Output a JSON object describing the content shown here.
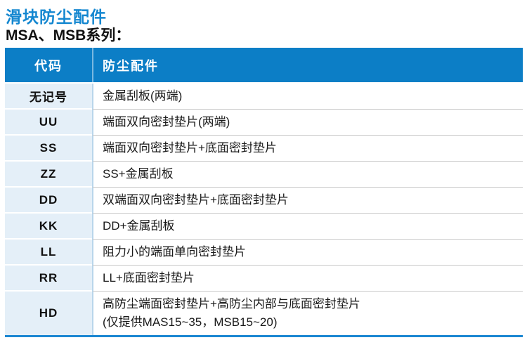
{
  "page": {
    "title": "滑块防尘配件",
    "subtitle": "MSA、MSB系列："
  },
  "table": {
    "headers": {
      "code": "代码",
      "accessory": "防尘配件"
    },
    "rows": [
      {
        "code": "无记号",
        "desc": "金属刮板(两端)"
      },
      {
        "code": "UU",
        "desc": "端面双向密封垫片(两端)"
      },
      {
        "code": "SS",
        "desc": "端面双向密封垫片+底面密封垫片"
      },
      {
        "code": "ZZ",
        "desc": "SS+金属刮板"
      },
      {
        "code": "DD",
        "desc": "双端面双向密封垫片+底面密封垫片"
      },
      {
        "code": "KK",
        "desc": "DD+金属刮板"
      },
      {
        "code": "LL",
        "desc": "阻力小的端面单向密封垫片"
      },
      {
        "code": "RR",
        "desc": "LL+底面密封垫片"
      },
      {
        "code": "HD",
        "desc": "高防尘端面密封垫片+高防尘内部与底面密封垫片",
        "note": "(仅提供MAS15~35，MSB15~20)"
      }
    ]
  },
  "colors": {
    "title_blue": "#1487D0",
    "header_blue": "#0C7EC6",
    "code_column_bg": "#E4EFF8",
    "bottom_border_blue": "#1B87D2",
    "row_divider_gray": "#C9C9C9",
    "column_divider_blue": "#B9D6EB"
  }
}
